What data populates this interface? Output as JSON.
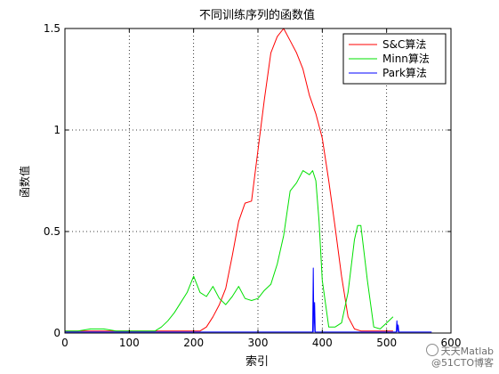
{
  "chart_data": {
    "type": "line",
    "title": "不同训练序列的函数值",
    "xlabel": "索引",
    "ylabel": "函数值",
    "xlim": [
      0,
      600
    ],
    "ylim": [
      0,
      1.5
    ],
    "xticks": [
      0,
      100,
      200,
      300,
      400,
      500,
      600
    ],
    "yticks": [
      0,
      0.5,
      1,
      1.5
    ],
    "xtick_labels": [
      "0",
      "100",
      "200",
      "300",
      "400",
      "500",
      "600"
    ],
    "ytick_labels": [
      "0",
      "0.5",
      "1",
      "1.5"
    ],
    "grid": true,
    "legend_position": "top-right",
    "series": [
      {
        "name": "S&C算法",
        "color": "#ff0000",
        "x": [
          0,
          20,
          40,
          60,
          80,
          100,
          120,
          140,
          160,
          180,
          200,
          210,
          220,
          230,
          240,
          250,
          260,
          270,
          280,
          290,
          300,
          310,
          320,
          330,
          340,
          350,
          360,
          370,
          380,
          390,
          400,
          410,
          420,
          430,
          440,
          450,
          460,
          470,
          480,
          490,
          500,
          510
        ],
        "y": [
          0.01,
          0.01,
          0.01,
          0.01,
          0.01,
          0.01,
          0.01,
          0.01,
          0.01,
          0.01,
          0.01,
          0.01,
          0.03,
          0.08,
          0.14,
          0.22,
          0.38,
          0.55,
          0.64,
          0.65,
          0.9,
          1.15,
          1.38,
          1.46,
          1.5,
          1.44,
          1.38,
          1.3,
          1.17,
          1.08,
          0.96,
          0.75,
          0.52,
          0.28,
          0.08,
          0.02,
          0.01,
          0.01,
          0.01,
          0.01,
          0.01,
          0.01
        ]
      },
      {
        "name": "Minn算法",
        "color": "#00e000",
        "x": [
          0,
          20,
          40,
          60,
          80,
          100,
          120,
          140,
          150,
          160,
          170,
          180,
          190,
          200,
          210,
          220,
          230,
          240,
          250,
          260,
          270,
          280,
          290,
          300,
          310,
          320,
          330,
          340,
          350,
          360,
          370,
          380,
          385,
          390,
          395,
          400,
          410,
          420,
          430,
          440,
          450,
          455,
          460,
          470,
          480,
          490,
          500,
          510
        ],
        "y": [
          0.01,
          0.01,
          0.02,
          0.02,
          0.01,
          0.01,
          0.01,
          0.01,
          0.03,
          0.06,
          0.1,
          0.15,
          0.2,
          0.28,
          0.2,
          0.18,
          0.23,
          0.17,
          0.14,
          0.18,
          0.23,
          0.17,
          0.16,
          0.17,
          0.21,
          0.24,
          0.34,
          0.48,
          0.7,
          0.74,
          0.8,
          0.78,
          0.8,
          0.75,
          0.55,
          0.26,
          0.03,
          0.03,
          0.05,
          0.2,
          0.46,
          0.53,
          0.53,
          0.26,
          0.03,
          0.02,
          0.05,
          0.08
        ]
      },
      {
        "name": "Park算法",
        "color": "#0000ff",
        "x": [
          0,
          50,
          100,
          150,
          200,
          250,
          300,
          350,
          380,
          385,
          386,
          387,
          388,
          389,
          390,
          391,
          392,
          393,
          420,
          450,
          470,
          510,
          515,
          516,
          517,
          518,
          519,
          520,
          550,
          570
        ],
        "y": [
          0.005,
          0.005,
          0.005,
          0.005,
          0.005,
          0.005,
          0.005,
          0.005,
          0.005,
          0.005,
          0.32,
          0.005,
          0.15,
          0.005,
          0.005,
          0.005,
          0.005,
          0.005,
          0.005,
          0.005,
          0.005,
          0.005,
          0.005,
          0.06,
          0.005,
          0.04,
          0.005,
          0.005,
          0.005,
          0.005
        ]
      }
    ]
  },
  "watermark": {
    "line1": "天天Matlab",
    "line2": "@51CTO博客"
  }
}
